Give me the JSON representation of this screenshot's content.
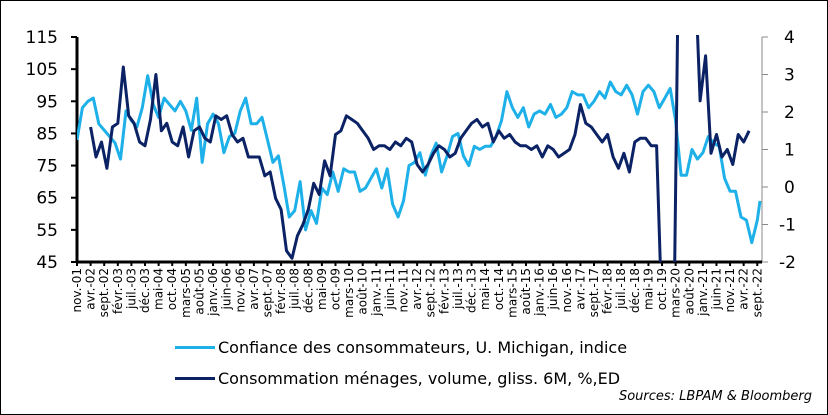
{
  "chart_data": {
    "type": "line",
    "title": "",
    "xlabel": "",
    "ylabel": "",
    "start_month": "nov.-01",
    "step_months": 2,
    "x_tick_labels": [
      "nov.-01",
      "avr.-02",
      "sept.-02",
      "févr.-03",
      "juil.-03",
      "déc.-03",
      "mai-04",
      "oct.-04",
      "mars-05",
      "août-05",
      "janv.-06",
      "juin-06",
      "nov.-06",
      "avr.-07",
      "sept.-07",
      "févr.-08",
      "juil.-08",
      "déc.-08",
      "mai-09",
      "oct.-09",
      "mars-10",
      "août-10",
      "janv.-11",
      "juin-11",
      "nov.-11",
      "avr.-12",
      "sept.-12",
      "févr.-13",
      "juil.-13",
      "déc.-13",
      "mai-14",
      "oct.-14",
      "mars-15",
      "août-15",
      "janv.-16",
      "juin-16",
      "nov.-16",
      "avr.-17",
      "sept.-17",
      "févr.-18",
      "juil.-18",
      "déc.-18",
      "mai-19",
      "oct.-19",
      "mars-20",
      "août-20",
      "janv.-21",
      "juin-21",
      "nov.-21",
      "avr.-22",
      "sept.-22"
    ],
    "y_left": {
      "ylim": [
        45,
        115
      ],
      "ticks": [
        45,
        55,
        65,
        75,
        85,
        95,
        105,
        115
      ]
    },
    "y_right": {
      "ylim": [
        -2,
        4
      ],
      "ticks": [
        -2,
        -1,
        0,
        1,
        2,
        3,
        4
      ]
    },
    "grid": false,
    "legend_position": "bottom",
    "series": [
      {
        "name": "Confiance des consommateurs, U. Michigan, indice",
        "axis": "left",
        "color": "#1EB0E8",
        "start_month_index": 0,
        "values": [
          83,
          93,
          95,
          96,
          88,
          86,
          84,
          82,
          77,
          92,
          89,
          87,
          93,
          103,
          94,
          90,
          96,
          94,
          92,
          95,
          92,
          86,
          96,
          76,
          88,
          91,
          88,
          79,
          84,
          85,
          92,
          96,
          88,
          88,
          90,
          83,
          76,
          78,
          69,
          59,
          61,
          70,
          55,
          61,
          57,
          68,
          66,
          73,
          67,
          74,
          73,
          73,
          67,
          68,
          71,
          74,
          68,
          74,
          63,
          59,
          64,
          75,
          76,
          79,
          72,
          78,
          82,
          73,
          78,
          84,
          85,
          78,
          75,
          81,
          80,
          81,
          81,
          84,
          89,
          98,
          93,
          90,
          93,
          87,
          91,
          92,
          91,
          94,
          90,
          91,
          93,
          98,
          97,
          97,
          93,
          95,
          98,
          96,
          101,
          98,
          97,
          100,
          97,
          91,
          98,
          100,
          98,
          93,
          96,
          99,
          89,
          72,
          72,
          80,
          77,
          79,
          84,
          82,
          81,
          71,
          67,
          67,
          59,
          58,
          51,
          58,
          64
        ]
      },
      {
        "name": "Consommation ménages, volume, gliss. 6M, %,ED",
        "axis": "right",
        "color": "#0B2265",
        "start_month_index": 5,
        "values": [
          1.6,
          0.8,
          1.2,
          0.5,
          1.6,
          1.7,
          3.2,
          1.9,
          1.7,
          1.2,
          1.1,
          1.8,
          3.0,
          1.5,
          1.7,
          1.2,
          1.1,
          1.6,
          0.8,
          1.5,
          1.6,
          1.3,
          1.2,
          1.9,
          1.8,
          1.9,
          1.4,
          1.2,
          1.3,
          0.8,
          0.8,
          0.8,
          0.3,
          0.4,
          -0.3,
          -0.6,
          -1.7,
          -1.9,
          -1.3,
          -1.0,
          -0.6,
          0.1,
          -0.2,
          0.7,
          0.3,
          1.4,
          1.5,
          1.9,
          1.8,
          1.7,
          1.5,
          1.3,
          1.0,
          1.1,
          1.1,
          1.0,
          1.2,
          1.1,
          1.3,
          1.2,
          0.6,
          0.4,
          0.6,
          0.9,
          1.1,
          1.0,
          0.8,
          0.9,
          1.3,
          1.5,
          1.7,
          1.8,
          1.6,
          1.7,
          1.2,
          1.5,
          1.3,
          1.4,
          1.2,
          1.1,
          1.1,
          1.0,
          1.1,
          0.8,
          1.1,
          1.0,
          0.8,
          0.9,
          1.0,
          1.4,
          2.2,
          1.7,
          1.6,
          1.4,
          1.2,
          1.4,
          0.8,
          0.5,
          0.9,
          0.4,
          1.2,
          1.3,
          1.3,
          1.1,
          1.1,
          -3.5,
          -6,
          -6,
          6,
          6,
          5,
          6,
          2.3,
          3.5,
          0.9,
          1.4,
          0.8,
          1.0,
          0.6,
          1.4,
          1.2,
          1.5
        ]
      }
    ]
  },
  "legend": [
    {
      "label": "Confiance des consommateurs, U. Michigan, indice",
      "color": "#1EB0E8"
    },
    {
      "label": "Consommation ménages, volume, gliss. 6M, %,ED",
      "color": "#0B2265"
    }
  ],
  "source": "Sources: LBPAM & Bloomberg"
}
